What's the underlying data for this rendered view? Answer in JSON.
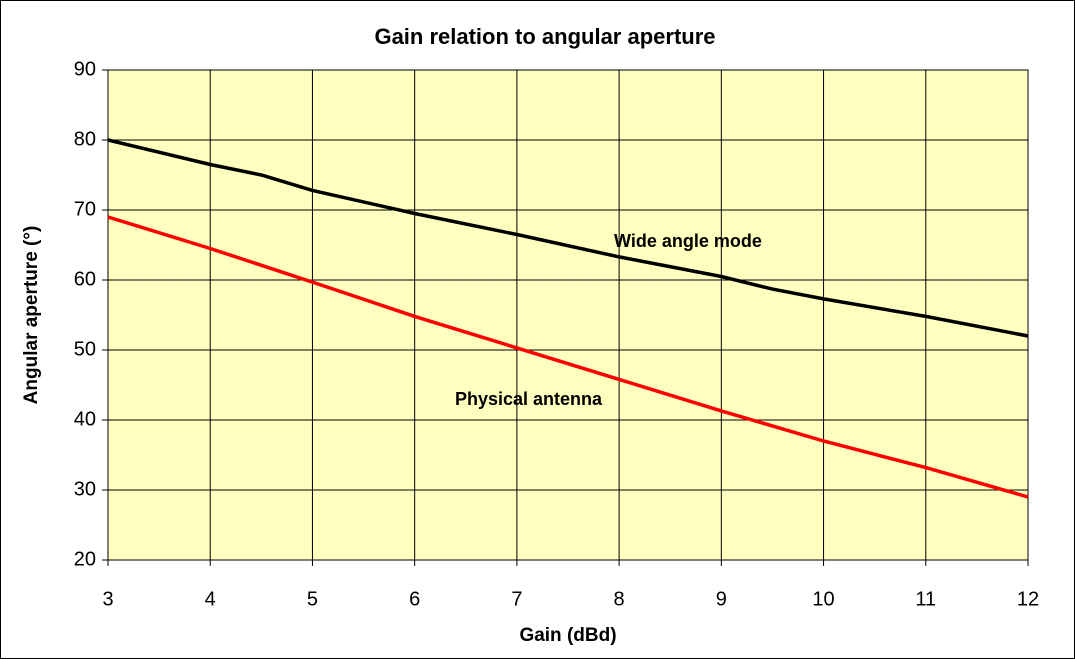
{
  "chart_data": {
    "type": "line",
    "title": "Gain relation to angular aperture",
    "x_label": "Gain (dBd)",
    "y_label": "Angular aperture (°)",
    "xlim": [
      3,
      12
    ],
    "xticks": [
      3,
      4,
      5,
      6,
      7,
      8,
      9,
      10,
      11,
      12
    ],
    "ylim": [
      20,
      90
    ],
    "yticks": [
      20,
      30,
      40,
      50,
      60,
      70,
      80,
      90
    ],
    "grid": true,
    "series": [
      {
        "name": "Wide angle mode",
        "color": "#000000",
        "x": [
          3,
          4,
          4.5,
          5,
          6,
          7,
          8,
          9,
          9.5,
          10,
          11,
          12
        ],
        "values": [
          80,
          76.5,
          75,
          72.8,
          69.5,
          66.5,
          63.3,
          60.5,
          58.7,
          57.3,
          54.8,
          52
        ]
      },
      {
        "name": "Physical antenna",
        "color": "#ff0000",
        "x": [
          3,
          4,
          5,
          6,
          7,
          8,
          9,
          10,
          11,
          12
        ],
        "values": [
          69,
          64.5,
          59.7,
          54.8,
          50.3,
          45.8,
          41.3,
          37,
          33.2,
          29
        ]
      }
    ]
  }
}
